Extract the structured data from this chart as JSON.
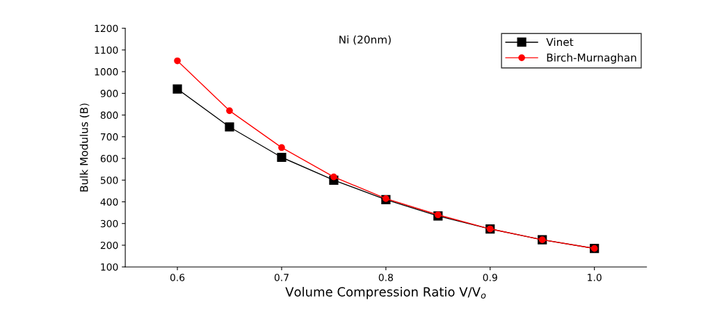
{
  "chart_data": {
    "type": "line",
    "title": "Ni (20nm)",
    "xlabel": "Volume Compression Ratio V/V$_{o}$",
    "ylabel": "Bulk Modulus (B)",
    "x": [
      0.6,
      0.65,
      0.7,
      0.75,
      0.8,
      0.85,
      0.9,
      0.95,
      1.0
    ],
    "series": [
      {
        "name": "Vinet",
        "color": "#000000",
        "marker": "square",
        "values": [
          920,
          745,
          605,
          500,
          410,
          335,
          275,
          225,
          185
        ]
      },
      {
        "name": "Birch-Murnaghan",
        "color": "#ff0000",
        "marker": "circle",
        "values": [
          1050,
          820,
          650,
          515,
          415,
          340,
          275,
          225,
          185
        ]
      }
    ],
    "xlim": [
      0.55,
      1.05
    ],
    "xticks": [
      {
        "value": 0.6,
        "label": "0.6"
      },
      {
        "value": 0.7,
        "label": "0.7"
      },
      {
        "value": 0.8,
        "label": "0.8"
      },
      {
        "value": 0.9,
        "label": "0.9"
      },
      {
        "value": 1.0,
        "label": "1.0"
      }
    ],
    "ylim": [
      100,
      1200
    ],
    "yticks": [
      100,
      200,
      300,
      400,
      500,
      600,
      700,
      800,
      900,
      1000,
      1100,
      1200
    ],
    "grid": false,
    "legend": "top right",
    "line_style": "solid"
  }
}
